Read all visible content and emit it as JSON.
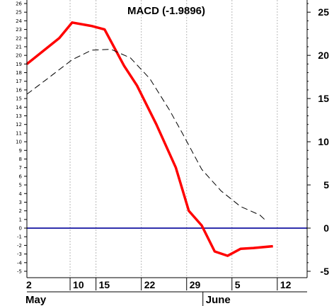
{
  "chart_data": {
    "type": "line",
    "title": "MACD (-1.9896)",
    "x_ticks": [
      "2",
      "10",
      "15",
      "22",
      "29",
      "5",
      "12"
    ],
    "month_labels": [
      "May",
      "June"
    ],
    "y_left": {
      "min": -5,
      "max": 26,
      "step": 1
    },
    "y_right_ticks": [
      -5,
      0,
      5,
      10,
      15,
      20,
      25
    ],
    "series": [
      {
        "color": "#ff0000",
        "style": "solid",
        "points": [
          [
            0,
            19.0
          ],
          [
            5,
            22.0
          ],
          [
            7,
            23.8
          ],
          [
            10,
            23.4
          ],
          [
            12,
            23.0
          ],
          [
            15,
            18.8
          ],
          [
            17,
            16.5
          ],
          [
            20,
            12.0
          ],
          [
            23,
            7.0
          ],
          [
            25,
            2.0
          ],
          [
            27,
            0.3
          ],
          [
            29,
            -2.7
          ],
          [
            31,
            -3.2
          ],
          [
            33,
            -2.4
          ],
          [
            35,
            -2.3
          ],
          [
            38,
            -2.1
          ]
        ]
      },
      {
        "color": "#000000",
        "style": "dashed",
        "points": [
          [
            0,
            15.5
          ],
          [
            3,
            17.2
          ],
          [
            7,
            19.5
          ],
          [
            10,
            20.6
          ],
          [
            13,
            20.7
          ],
          [
            16,
            19.7
          ],
          [
            19,
            17.3
          ],
          [
            22,
            13.7
          ],
          [
            24,
            11.0
          ],
          [
            27,
            6.8
          ],
          [
            30,
            4.3
          ],
          [
            33,
            2.5
          ],
          [
            36,
            1.5
          ],
          [
            37,
            0.8
          ]
        ]
      }
    ],
    "zero_line": {
      "value": 0,
      "color": "#00009a"
    },
    "grid": "vertical dotted"
  }
}
